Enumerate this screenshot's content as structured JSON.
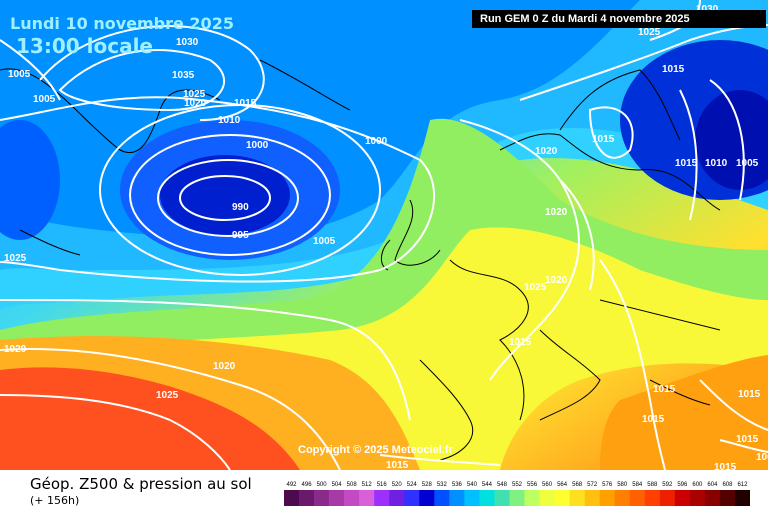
{
  "header": {
    "date": "Lundi 10 novembre 2025",
    "local_time": "13:00 locale",
    "run_info": "Run GEM 0 Z du Mardi 4 novembre 2025"
  },
  "copyright": "Copyright © 2025 Meteociel.fr",
  "footer": {
    "parameter": "Géop. Z500 & pression au sol",
    "forecast_hour": "(+ 156h)"
  },
  "isobar_labels": [
    "1030",
    "1035",
    "1025",
    "1020",
    "1015",
    "1010",
    "1005",
    "1005",
    "1000",
    "1000",
    "990",
    "995",
    "1005",
    "1025",
    "1020",
    "1025",
    "1020",
    "1020",
    "1020",
    "1020",
    "1025",
    "1015",
    "1015",
    "1010",
    "1005",
    "1015",
    "1015",
    "1015",
    "1015",
    "1015",
    "1015",
    "1015",
    "1005",
    "1015",
    "1030",
    "1025"
  ],
  "color_scale": {
    "labels": [
      "492",
      "496",
      "500",
      "504",
      "508",
      "512",
      "516",
      "520",
      "524",
      "528",
      "532",
      "536",
      "540",
      "544",
      "548",
      "552",
      "556",
      "560",
      "564",
      "568",
      "572",
      "576",
      "580",
      "584",
      "588",
      "592",
      "596",
      "600",
      "604",
      "608",
      "612"
    ],
    "colors": [
      "#4d0a4d",
      "#6b1a6b",
      "#8a2a8a",
      "#a83aa8",
      "#c24ac2",
      "#d860d8",
      "#9b30ff",
      "#7020e0",
      "#3030ff",
      "#0000d0",
      "#0050ff",
      "#0090ff",
      "#00c0ff",
      "#00e0e0",
      "#40e0b0",
      "#80f080",
      "#c0ff60",
      "#eeff40",
      "#ffff30",
      "#ffe020",
      "#ffc010",
      "#ffa000",
      "#ff8000",
      "#ff6000",
      "#ff4000",
      "#ee2000",
      "#cc0000",
      "#aa0000",
      "#880000",
      "#550000",
      "#200000"
    ]
  },
  "map_colors": {
    "ocean_deep_low": "#0010c0",
    "low_inner": "#1520d8",
    "blue": "#0080ff",
    "cyan": "#20c8ff",
    "aqua": "#40e0c0",
    "green": "#70e070",
    "yellowgreen": "#b0f050",
    "yellow": "#ffff40",
    "orange": "#ffb020",
    "red_orange": "#ff6020",
    "red": "#f03010"
  }
}
